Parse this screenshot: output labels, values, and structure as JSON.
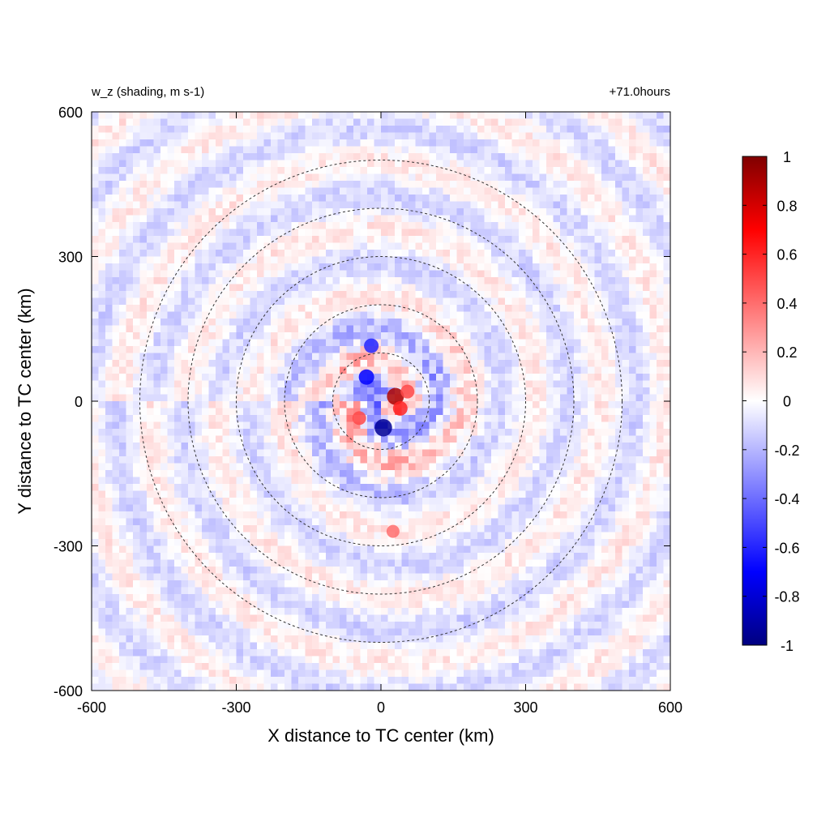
{
  "chart_data": {
    "type": "heatmap",
    "title_left": "w_z (shading, m s-1)",
    "title_right": "+71.0hours",
    "xlabel": "X distance to TC center (km)",
    "ylabel": "Y distance to TC center (km)",
    "xlim": [
      -600,
      600
    ],
    "ylim": [
      -600,
      600
    ],
    "xticks": [
      -600,
      -300,
      0,
      300,
      600
    ],
    "yticks": [
      -600,
      -300,
      0,
      300,
      600
    ],
    "xtick_labels": [
      "-600",
      "-300",
      "0",
      "300",
      "600"
    ],
    "ytick_labels": [
      "-600",
      "-300",
      "0",
      "300",
      "600"
    ],
    "ring_radii": [
      100,
      200,
      300,
      400,
      500
    ],
    "colorbar": {
      "range": [
        -1,
        1
      ],
      "ticks": [
        1,
        0.8,
        0.6,
        0.4,
        0.2,
        0,
        -0.2,
        -0.4,
        -0.6,
        -0.8,
        -1
      ],
      "tick_labels": [
        "1",
        "0.8",
        "0.6",
        "0.4",
        "0.2",
        "0",
        "-0.2",
        "-0.4",
        "-0.6",
        "-0.8",
        "-1"
      ],
      "colors": {
        "max": "#800000",
        "high": "#ff0000",
        "mid": "#ffffff",
        "low": "#0000ff",
        "min": "#000080"
      }
    },
    "features": [
      {
        "x": 30,
        "y": 10,
        "value": 0.9
      },
      {
        "x": 5,
        "y": -55,
        "value": -0.95
      },
      {
        "x": -30,
        "y": 50,
        "value": -0.7
      },
      {
        "x": 40,
        "y": -15,
        "value": 0.6
      },
      {
        "x": -20,
        "y": 115,
        "value": -0.6
      },
      {
        "x": 55,
        "y": 20,
        "value": 0.5
      },
      {
        "x": -45,
        "y": -35,
        "value": 0.5
      },
      {
        "x": 25,
        "y": -270,
        "value": 0.4
      }
    ]
  }
}
